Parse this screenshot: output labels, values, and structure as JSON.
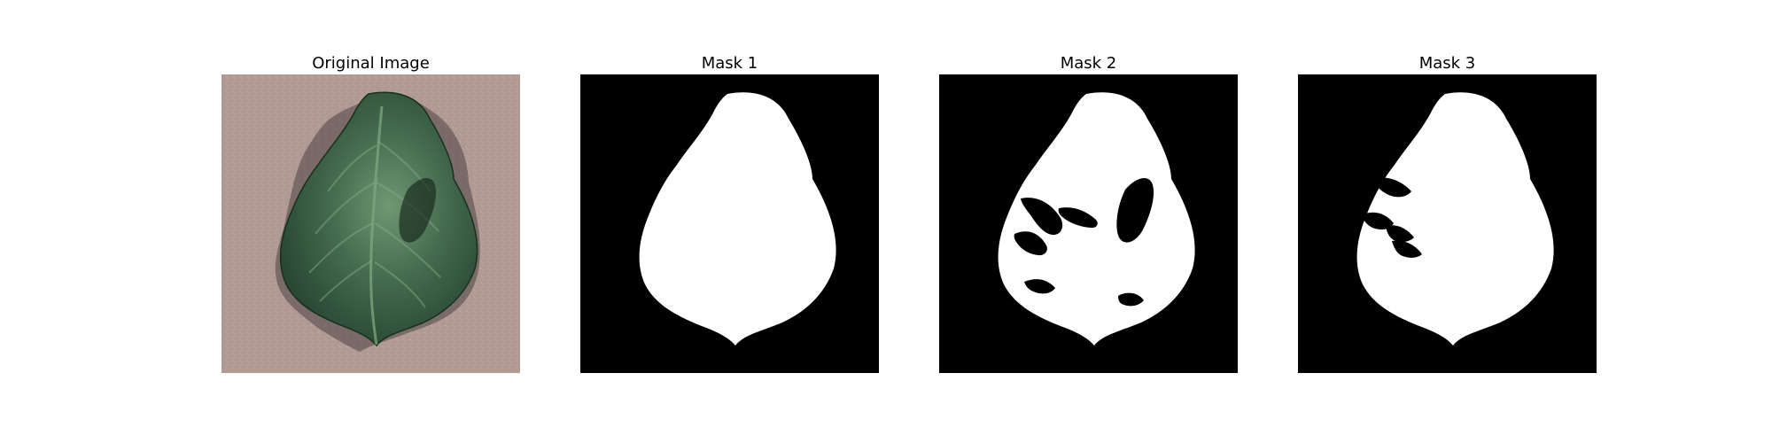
{
  "figure": {
    "panels": [
      {
        "title": "Original Image"
      },
      {
        "title": "Mask 1"
      },
      {
        "title": "Mask 2"
      },
      {
        "title": "Mask 3"
      }
    ]
  },
  "colors": {
    "background": "#ffffff",
    "mask_background": "#000000",
    "mask_foreground": "#ffffff",
    "surface": "#b29b95",
    "leaf_dark": "#24422c",
    "leaf_mid": "#3f6a4d",
    "leaf_light": "#69906d",
    "shadow": "#4f4443"
  },
  "icons": {
    "leaf": "leaf-photo-icon"
  }
}
